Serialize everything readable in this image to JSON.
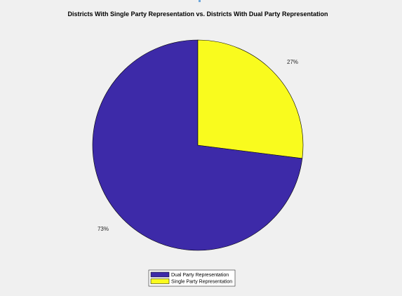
{
  "chart_data": {
    "type": "pie",
    "title": "Districts With Single Party Representation vs. Districts With Dual Party Representation",
    "slices": [
      {
        "name": "Dual Party Representation",
        "value": 73,
        "label": "73%",
        "color": "#3d2aa8"
      },
      {
        "name": "Single Party Representation",
        "value": 27,
        "label": "27%",
        "color": "#f9fb1e"
      }
    ],
    "legend": {
      "placement": "bottom-center",
      "entries": [
        "Dual Party Representation",
        "Single Party Representation"
      ]
    }
  }
}
